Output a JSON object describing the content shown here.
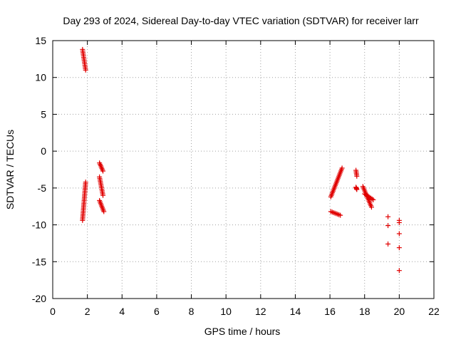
{
  "chart_data": {
    "type": "scatter",
    "title": "Day 293 of 2024, Sidereal Day-to-day VTEC variation (SDTVAR) for receiver larr",
    "xlabel": "GPS time / hours",
    "ylabel": "SDTVAR / TECUs",
    "xlim": [
      0,
      22
    ],
    "ylim": [
      -20,
      15
    ],
    "xticks": [
      "0",
      "2",
      "4",
      "6",
      "8",
      "10",
      "12",
      "14",
      "16",
      "18",
      "20",
      "22"
    ],
    "yticks": [
      "15",
      "10",
      "5",
      "0",
      "-5",
      "-10",
      "-15",
      "-20"
    ],
    "grid": true,
    "marker": "+",
    "marker_color": "#e00000",
    "segments": [
      {
        "x0": 1.72,
        "y0": 13.8,
        "x1": 1.9,
        "y1": 11.0
      },
      {
        "x0": 1.72,
        "y0": -9.4,
        "x1": 1.9,
        "y1": -4.2
      },
      {
        "x0": 2.7,
        "y0": -1.6,
        "x1": 2.9,
        "y1": -2.7
      },
      {
        "x0": 2.7,
        "y0": -3.5,
        "x1": 2.9,
        "y1": -6.0
      },
      {
        "x0": 2.7,
        "y0": -6.7,
        "x1": 2.95,
        "y1": -8.2
      },
      {
        "x0": 16.05,
        "y0": -6.2,
        "x1": 16.7,
        "y1": -2.3
      },
      {
        "x0": 16.05,
        "y0": -8.2,
        "x1": 16.6,
        "y1": -8.7
      },
      {
        "x0": 17.5,
        "y0": -2.6,
        "x1": 17.55,
        "y1": -3.4
      },
      {
        "x0": 17.5,
        "y0": -4.9,
        "x1": 17.55,
        "y1": -5.2
      },
      {
        "x0": 17.9,
        "y0": -4.8,
        "x1": 18.4,
        "y1": -7.6
      },
      {
        "x0": 18.0,
        "y0": -5.8,
        "x1": 18.5,
        "y1": -6.6
      }
    ],
    "points": [
      {
        "x": 19.35,
        "y": -8.9
      },
      {
        "x": 19.35,
        "y": -10.1
      },
      {
        "x": 19.35,
        "y": -12.6
      },
      {
        "x": 20.0,
        "y": -9.4
      },
      {
        "x": 20.0,
        "y": -9.7
      },
      {
        "x": 20.0,
        "y": -11.2
      },
      {
        "x": 20.0,
        "y": -13.1
      },
      {
        "x": 20.0,
        "y": -16.2
      }
    ]
  }
}
